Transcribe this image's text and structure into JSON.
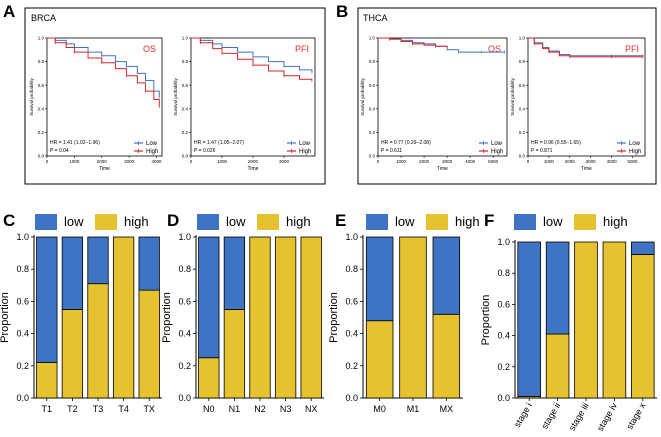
{
  "colors": {
    "low": "#4472C4",
    "high": "#D62728",
    "bar_low": "#3F74C4",
    "bar_high": "#E6C130",
    "accent_red": "#E03030",
    "border": "#000000"
  },
  "panel_labels": [
    "A",
    "B",
    "C",
    "D",
    "E",
    "F"
  ],
  "chart_data": [
    {
      "type": "line",
      "panel": "A",
      "cohort": "BRCA",
      "title": "OS",
      "xlabel": "Time",
      "ylabel": "Survival probability",
      "xlim": [
        0,
        4200
      ],
      "ylim": [
        0.0,
        1.0
      ],
      "xticks": [
        0,
        1000,
        2000,
        3000,
        4000
      ],
      "xtick_labels": [
        "0",
        "1000",
        "2000",
        "3000",
        "4000"
      ],
      "yticks": [
        0.0,
        0.2,
        0.4,
        0.6,
        0.8,
        1.0
      ],
      "ytick_labels": [
        "0.0",
        "0.2",
        "0.4",
        "0.6",
        "0.8",
        "1.0"
      ],
      "stats": [
        "HR = 1.41 (1.02−1.96)",
        "P = 0.04"
      ],
      "legend": [
        "Low",
        "High"
      ],
      "series": [
        {
          "name": "Low",
          "x": [
            0,
            300,
            700,
            1000,
            1500,
            2000,
            2500,
            2900,
            3300,
            3600,
            3900,
            4100
          ],
          "y": [
            1.0,
            0.98,
            0.95,
            0.92,
            0.88,
            0.85,
            0.8,
            0.76,
            0.7,
            0.64,
            0.55,
            0.5
          ]
        },
        {
          "name": "High",
          "x": [
            0,
            300,
            700,
            1000,
            1500,
            2000,
            2500,
            2900,
            3300,
            3600,
            3900,
            4100
          ],
          "y": [
            1.0,
            0.96,
            0.92,
            0.88,
            0.83,
            0.79,
            0.74,
            0.68,
            0.62,
            0.55,
            0.48,
            0.42
          ]
        }
      ]
    },
    {
      "type": "line",
      "panel": "A",
      "cohort": "BRCA",
      "title": "PFI",
      "xlabel": "Time",
      "ylabel": "Survival probability",
      "xlim": [
        0,
        4000
      ],
      "ylim": [
        0.0,
        1.0
      ],
      "xticks": [
        0,
        1000,
        2000,
        3000
      ],
      "xtick_labels": [
        "0",
        "1000",
        "2000",
        "3000"
      ],
      "yticks": [
        0.0,
        0.2,
        0.4,
        0.6,
        0.8,
        1.0
      ],
      "ytick_labels": [
        "0.0",
        "0.2",
        "0.4",
        "0.6",
        "0.8",
        "1.0"
      ],
      "stats": [
        "HR = 1.47 (1.05−2.07)",
        "P = 0.026"
      ],
      "legend": [
        "Low",
        "High"
      ],
      "series": [
        {
          "name": "Low",
          "x": [
            0,
            300,
            700,
            1000,
            1500,
            2000,
            2500,
            3000,
            3500,
            3900
          ],
          "y": [
            1.0,
            0.98,
            0.95,
            0.92,
            0.88,
            0.84,
            0.8,
            0.76,
            0.73,
            0.71
          ]
        },
        {
          "name": "High",
          "x": [
            0,
            300,
            700,
            1000,
            1500,
            2000,
            2500,
            3000,
            3500,
            3900
          ],
          "y": [
            1.0,
            0.96,
            0.91,
            0.87,
            0.82,
            0.77,
            0.72,
            0.68,
            0.65,
            0.64
          ]
        }
      ]
    },
    {
      "type": "line",
      "panel": "B",
      "cohort": "THCA",
      "title": "OS",
      "xlabel": "Time",
      "ylabel": "Survival probability",
      "xlim": [
        0,
        5600
      ],
      "ylim": [
        0.0,
        1.0
      ],
      "xticks": [
        0,
        1000,
        2000,
        3000,
        4000,
        5000
      ],
      "xtick_labels": [
        "0",
        "1000",
        "2000",
        "3000",
        "4000",
        "5000"
      ],
      "yticks": [
        0.0,
        0.2,
        0.4,
        0.6,
        0.8,
        1.0
      ],
      "ytick_labels": [
        "0.0",
        "0.2",
        "0.4",
        "0.6",
        "0.8",
        "1.0"
      ],
      "stats": [
        "HR = 0.77 (0.29−2.08)",
        "P = 0.611"
      ],
      "legend": [
        "Low",
        "High"
      ],
      "series": [
        {
          "name": "Low",
          "x": [
            0,
            500,
            1000,
            1500,
            2000,
            2500,
            3000,
            3500,
            4000,
            4500,
            5000,
            5500
          ],
          "y": [
            1.0,
            0.99,
            0.98,
            0.96,
            0.95,
            0.93,
            0.9,
            0.88,
            0.88,
            0.88,
            0.88,
            0.88
          ]
        },
        {
          "name": "High",
          "x": [
            0,
            500,
            1000,
            1500,
            2000,
            2500,
            3000
          ],
          "y": [
            1.0,
            0.99,
            0.97,
            0.95,
            0.94,
            0.93,
            0.92
          ]
        }
      ]
    },
    {
      "type": "line",
      "panel": "B",
      "cohort": "THCA",
      "title": "PFI",
      "xlabel": "Time",
      "ylabel": "Survival probability",
      "xlim": [
        0,
        5600
      ],
      "ylim": [
        0.0,
        1.0
      ],
      "xticks": [
        0,
        1000,
        2000,
        3000,
        4000,
        5000
      ],
      "xtick_labels": [
        "0",
        "1000",
        "2000",
        "3000",
        "4000",
        "5000"
      ],
      "yticks": [
        0.0,
        0.2,
        0.4,
        0.6,
        0.8,
        1.0
      ],
      "ytick_labels": [
        "0.0",
        "0.2",
        "0.4",
        "0.6",
        "0.8",
        "1.0"
      ],
      "stats": [
        "HR = 0.96 (0.55−1.65)",
        "P = 0.871"
      ],
      "legend": [
        "Low",
        "High"
      ],
      "series": [
        {
          "name": "Low",
          "x": [
            0,
            300,
            700,
            1000,
            1500,
            2000,
            3000,
            4000,
            5000,
            5500
          ],
          "y": [
            1.0,
            0.96,
            0.92,
            0.89,
            0.86,
            0.85,
            0.85,
            0.85,
            0.85,
            0.85
          ]
        },
        {
          "name": "High",
          "x": [
            0,
            300,
            700,
            1000,
            1500,
            2000,
            3000,
            4000,
            5000,
            5500
          ],
          "y": [
            1.0,
            0.95,
            0.91,
            0.88,
            0.85,
            0.84,
            0.84,
            0.84,
            0.84,
            0.84
          ]
        }
      ]
    },
    {
      "type": "bar",
      "stacked": true,
      "panel": "C",
      "ylabel": "Proportion",
      "ylim": [
        0.0,
        1.0
      ],
      "yticks": [
        0.0,
        0.2,
        0.4,
        0.6,
        0.8,
        1.0
      ],
      "ytick_labels": [
        "0.0",
        "0.2",
        "0.4",
        "0.6",
        "0.8",
        "1.0"
      ],
      "legend": [
        "low",
        "high"
      ],
      "categories": [
        "T1",
        "T2",
        "T3",
        "T4",
        "TX"
      ],
      "series": [
        {
          "name": "high",
          "values": [
            0.22,
            0.55,
            0.71,
            1.0,
            0.67
          ]
        },
        {
          "name": "low",
          "values": [
            0.78,
            0.45,
            0.29,
            0.0,
            0.33
          ]
        }
      ]
    },
    {
      "type": "bar",
      "stacked": true,
      "panel": "D",
      "ylabel": "Proportion",
      "ylim": [
        0.0,
        1.0
      ],
      "yticks": [
        0.0,
        0.2,
        0.4,
        0.6,
        0.8,
        1.0
      ],
      "ytick_labels": [
        "0.0",
        "0.2",
        "0.4",
        "0.6",
        "0.8",
        "1.0"
      ],
      "legend": [
        "low",
        "high"
      ],
      "categories": [
        "N0",
        "N1",
        "N2",
        "N3",
        "NX"
      ],
      "series": [
        {
          "name": "high",
          "values": [
            0.25,
            0.55,
            1.0,
            1.0,
            1.0
          ]
        },
        {
          "name": "low",
          "values": [
            0.75,
            0.45,
            0.0,
            0.0,
            0.0
          ]
        }
      ]
    },
    {
      "type": "bar",
      "stacked": true,
      "panel": "E",
      "ylabel": "Proportion",
      "ylim": [
        0.0,
        1.0
      ],
      "yticks": [
        0.0,
        0.2,
        0.4,
        0.6,
        0.8,
        1.0
      ],
      "ytick_labels": [
        "0.0",
        "0.2",
        "0.4",
        "0.6",
        "0.8",
        "1.0"
      ],
      "legend": [
        "low",
        "high"
      ],
      "categories": [
        "M0",
        "M1",
        "MX"
      ],
      "series": [
        {
          "name": "high",
          "values": [
            0.48,
            1.0,
            0.52
          ]
        },
        {
          "name": "low",
          "values": [
            0.52,
            0.0,
            0.48
          ]
        }
      ]
    },
    {
      "type": "bar",
      "stacked": true,
      "panel": "F",
      "ylabel": "Proportion",
      "ylim": [
        0.0,
        1.0
      ],
      "yticks": [
        0.0,
        0.2,
        0.4,
        0.6,
        0.8,
        1.0
      ],
      "ytick_labels": [
        "0.0",
        "0.2",
        "0.4",
        "0.6",
        "0.8",
        "1.0"
      ],
      "legend": [
        "low",
        "high"
      ],
      "categories": [
        "stage i",
        "stage ii",
        "stage iii",
        "stage iv",
        "stage x"
      ],
      "series": [
        {
          "name": "high",
          "values": [
            0.01,
            0.41,
            1.0,
            1.0,
            0.92
          ]
        },
        {
          "name": "low",
          "values": [
            0.99,
            0.59,
            0.0,
            0.0,
            0.08
          ]
        }
      ]
    }
  ]
}
